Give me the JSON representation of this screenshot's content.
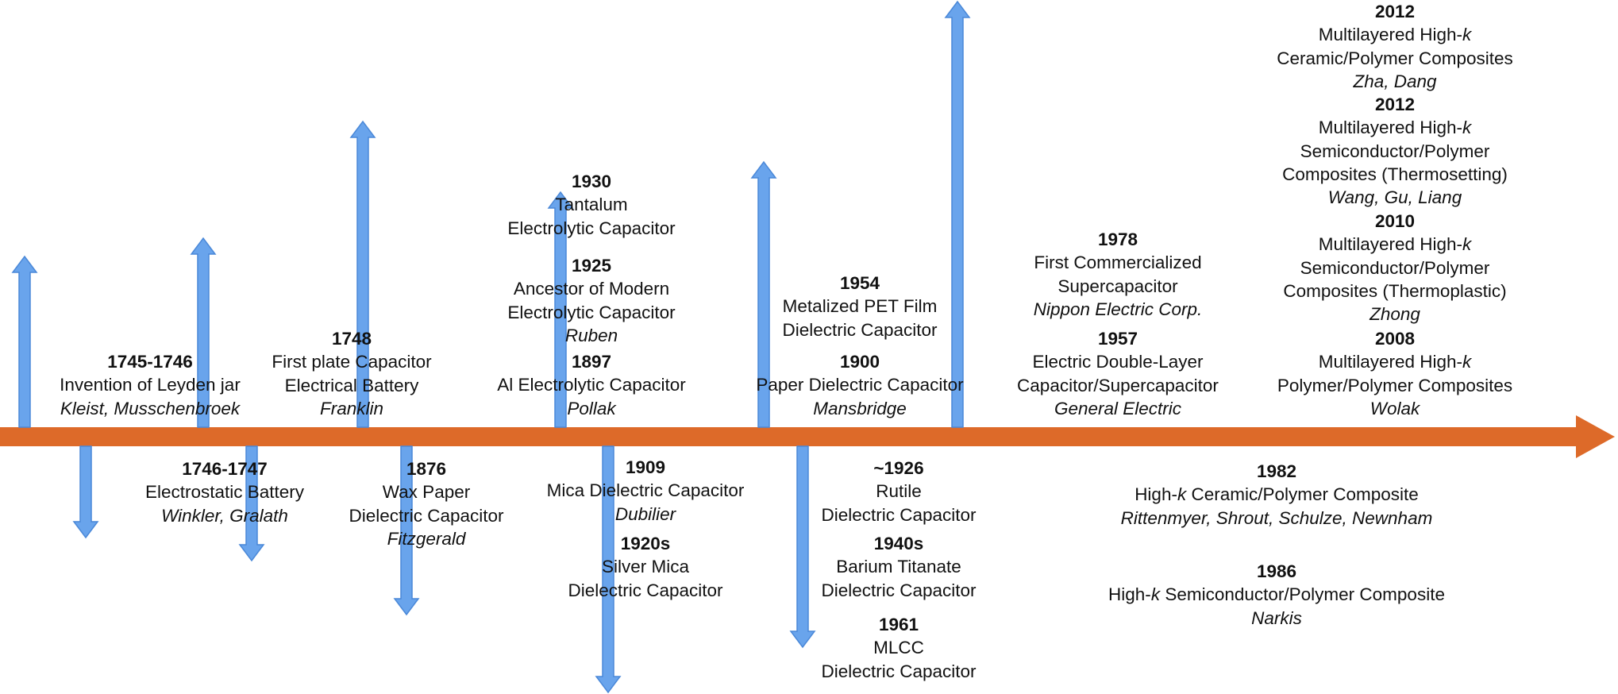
{
  "colors": {
    "timeline": "#dd6a29",
    "arrow": "#69a4ec",
    "arrow_stroke": "#4a88d8",
    "text": "#111111"
  },
  "events": [
    {
      "id": "e1745",
      "year": "1745-1746",
      "lines": [
        "Invention of Leyden jar"
      ],
      "author": "Kleist, Musschenbroek"
    },
    {
      "id": "e1748",
      "year": "1748",
      "lines": [
        "First plate Capacitor",
        "Electrical Battery"
      ],
      "author": "Franklin"
    },
    {
      "id": "e1930",
      "year": "1930",
      "lines": [
        "Tantalum",
        "Electrolytic Capacitor"
      ],
      "author": ""
    },
    {
      "id": "e1925",
      "year": "1925",
      "lines": [
        "Ancestor of Modern",
        "Electrolytic Capacitor"
      ],
      "author": "Ruben"
    },
    {
      "id": "e1897",
      "year": "1897",
      "lines": [
        "Al Electrolytic Capacitor"
      ],
      "author": "Pollak"
    },
    {
      "id": "e1954",
      "year": "1954",
      "lines": [
        "Metalized PET Film",
        "Dielectric Capacitor"
      ],
      "author": ""
    },
    {
      "id": "e1900",
      "year": "1900",
      "lines": [
        "Paper Dielectric Capacitor"
      ],
      "author": "Mansbridge"
    },
    {
      "id": "e1978",
      "year": "1978",
      "lines": [
        "First Commercialized",
        "Supercapacitor"
      ],
      "author": "Nippon Electric Corp."
    },
    {
      "id": "e1957",
      "year": "1957",
      "lines": [
        "Electric Double-Layer",
        "Capacitor/Supercapacitor"
      ],
      "author": "General Electric"
    },
    {
      "id": "e2012a",
      "year": "2012",
      "lines": [
        [
          "Multilayered High-",
          {
            "i": "k"
          }
        ],
        "Ceramic/Polymer Composites"
      ],
      "author": "Zha, Dang"
    },
    {
      "id": "e2012b",
      "year": "2012",
      "lines": [
        [
          "Multilayered High-",
          {
            "i": "k"
          }
        ],
        "Semiconductor/Polymer",
        "Composites (Thermosetting)"
      ],
      "author": "Wang, Gu, Liang"
    },
    {
      "id": "e2010",
      "year": "2010",
      "lines": [
        [
          "Multilayered High-",
          {
            "i": "k"
          }
        ],
        "Semiconductor/Polymer",
        "Composites (Thermoplastic)"
      ],
      "author": "Zhong"
    },
    {
      "id": "e2008",
      "year": "2008",
      "lines": [
        [
          "Multilayered High-",
          {
            "i": "k"
          }
        ],
        "Polymer/Polymer Composites"
      ],
      "author": "Wolak"
    },
    {
      "id": "e1746",
      "year": "1746-1747",
      "lines": [
        "Electrostatic Battery"
      ],
      "author": "Winkler, Gralath"
    },
    {
      "id": "e1876",
      "year": "1876",
      "lines": [
        "Wax Paper",
        "Dielectric Capacitor"
      ],
      "author": "Fitzgerald"
    },
    {
      "id": "e1909",
      "year": "1909",
      "lines": [
        "Mica Dielectric Capacitor"
      ],
      "author": "Dubilier"
    },
    {
      "id": "e1920s",
      "year": "1920s",
      "lines": [
        "Silver Mica",
        "Dielectric Capacitor"
      ],
      "author": ""
    },
    {
      "id": "e1926",
      "year": "~1926",
      "lines": [
        "Rutile",
        "Dielectric Capacitor"
      ],
      "author": ""
    },
    {
      "id": "e1940s",
      "year": "1940s",
      "lines": [
        "Barium Titanate",
        "Dielectric Capacitor"
      ],
      "author": ""
    },
    {
      "id": "e1961",
      "year": "1961",
      "lines": [
        "MLCC",
        "Dielectric Capacitor"
      ],
      "author": ""
    },
    {
      "id": "e1982",
      "year": "1982",
      "lines": [
        [
          "High-",
          {
            "i": "k"
          },
          " Ceramic/Polymer Composite"
        ]
      ],
      "author": "Rittenmyer, Shrout, Schulze, Newnham"
    },
    {
      "id": "e1986",
      "year": "1986",
      "lines": [
        [
          "High-",
          {
            "i": "k"
          },
          " Semiconductor/Polymer Composite"
        ]
      ],
      "author": "Narkis"
    }
  ]
}
